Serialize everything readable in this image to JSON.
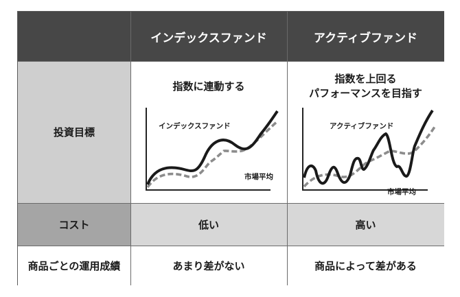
{
  "headers": {
    "corner": "",
    "index": "インデックスファンド",
    "active": "アクティブファンド"
  },
  "rows": [
    {
      "label": "投資目標",
      "index_desc": "指数に連動する",
      "active_desc_1": "指数を上回る",
      "active_desc_2": "パフォーマンスを目指す"
    },
    {
      "label": "コスト",
      "index": "低い",
      "active": "高い"
    },
    {
      "label": "商品ごとの運用成績",
      "index": "あまり差がない",
      "active": "商品によって差がある"
    }
  ],
  "charts": {
    "index": {
      "fund_label": "インデックスファンド",
      "avg_label": "市場平均"
    },
    "active": {
      "fund_label": "アクティブファンド",
      "avg_label": "市場平均"
    }
  },
  "colors": {
    "header_bg": "#474747",
    "label_bg": "#cfcfcf",
    "cost_row_bg": "#a5a5a5",
    "fund_line": "#1a1a1a",
    "average_line": "#8c8c8c"
  }
}
